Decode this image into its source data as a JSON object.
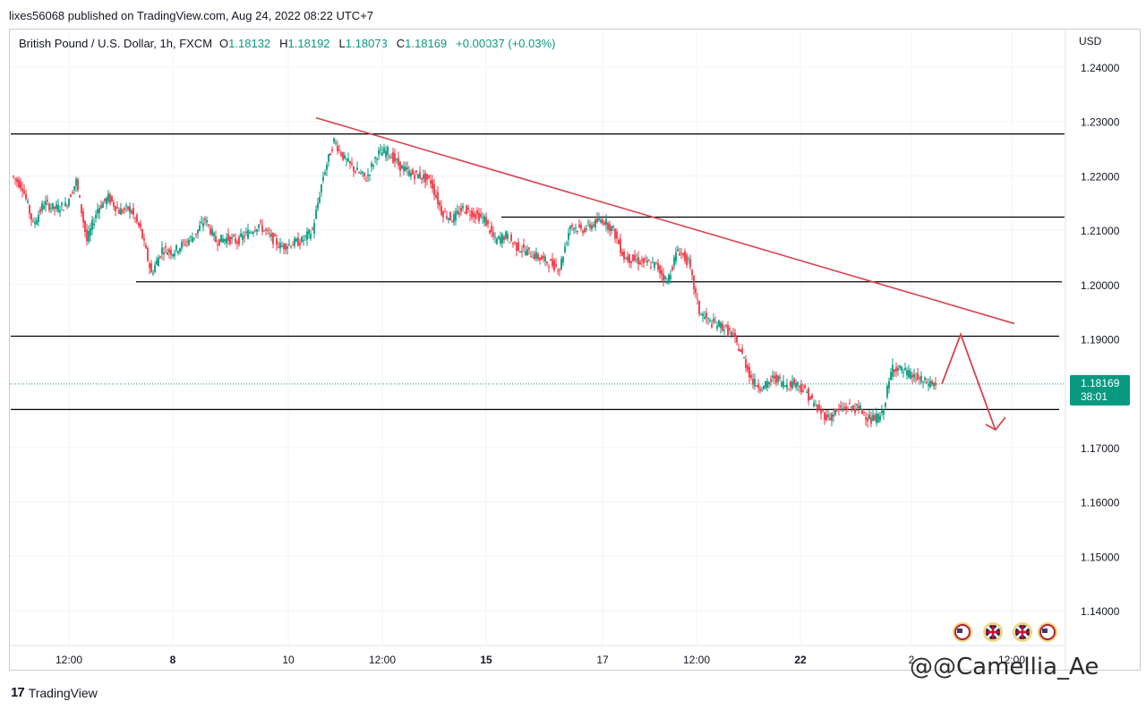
{
  "published_line": "lixes56068 published on TradingView.com, Aug 24, 2022 08:22 UTC+7",
  "legend": {
    "symbol": "British Pound / U.S. Dollar, 1h, FXCM",
    "open_label": "O",
    "open": "1.18132",
    "high_label": "H",
    "high": "1.18192",
    "low_label": "L",
    "low": "1.18073",
    "close_label": "C",
    "close": "1.18169",
    "change": "+0.00037 (+0.03%)"
  },
  "currency": "USD",
  "price_tag": {
    "price": "1.18169",
    "countdown": "38:01",
    "color": "#089981"
  },
  "colors": {
    "up": "#089981",
    "down": "#f23645",
    "trendline": "#d9434e",
    "level": "#000000"
  },
  "footer": {
    "brand": "TradingView",
    "logo": "17"
  },
  "watermark": "@@Camellia_Ae",
  "event_icons": [
    "us-flag-icon",
    "uk-flag-icon",
    "uk-flag-icon",
    "us-flag-icon"
  ],
  "chart_data": {
    "type": "candlestick",
    "title": "",
    "ylim": [
      1.135,
      1.245
    ],
    "y_ticks": [
      "1.24000",
      "1.23000",
      "1.22000",
      "1.21000",
      "1.20000",
      "1.19000",
      "1.17000",
      "1.16000",
      "1.15000",
      "1.14000"
    ],
    "x_ticks": [
      "12:00",
      "8",
      "10",
      "12:00",
      "15",
      "17",
      "12:00",
      "22",
      "2",
      "12:00"
    ],
    "horizontal_levels": [
      1.2277,
      1.2124,
      1.2005,
      1.1905,
      1.177
    ],
    "trendline": [
      [
        1.2287
      ],
      [
        1.191
      ]
    ],
    "price_path": [
      1.22,
      1.218,
      1.211,
      1.215,
      1.214,
      1.2145,
      1.219,
      1.208,
      1.214,
      1.216,
      1.2135,
      1.214,
      1.21,
      1.202,
      1.2065,
      1.206,
      1.2075,
      1.209,
      1.212,
      1.208,
      1.2085,
      1.208,
      1.2095,
      1.211,
      1.209,
      1.207,
      1.2075,
      1.208,
      1.21,
      1.22,
      1.2265,
      1.223,
      1.221,
      1.2195,
      1.224,
      1.2245,
      1.222,
      1.2205,
      1.22,
      1.219,
      1.2135,
      1.212,
      1.214,
      1.213,
      1.212,
      1.208,
      1.209,
      1.207,
      1.206,
      1.205,
      1.204,
      1.203,
      1.211,
      1.21,
      1.211,
      1.212,
      1.21,
      1.205,
      1.2045,
      1.204,
      1.2035,
      1.2005,
      1.2065,
      1.204,
      1.195,
      1.193,
      1.1925,
      1.191,
      1.187,
      1.182,
      1.181,
      1.183,
      1.1815,
      1.182,
      1.18,
      1.177,
      1.1755,
      1.177,
      1.1775,
      1.177,
      1.175,
      1.176,
      1.185,
      1.184,
      1.183,
      1.182,
      1.1817
    ],
    "projection": [
      [
        1.1817
      ],
      [
        1.1905
      ],
      [
        1.1735
      ]
    ]
  }
}
